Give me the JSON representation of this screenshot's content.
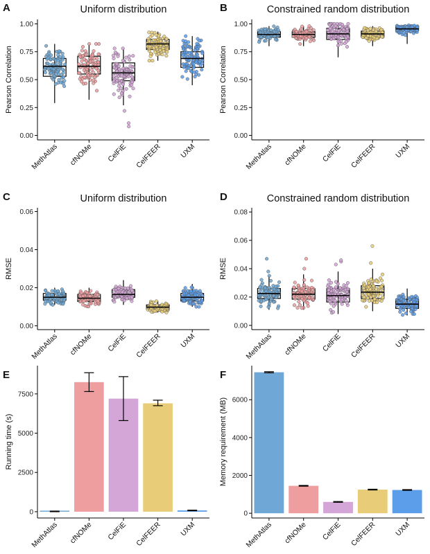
{
  "colors": {
    "MethAtlas": "#6fa8d6",
    "cfNOMe": "#ef9e9f",
    "CelFiE": "#d4a5d7",
    "CelFEER": "#e8cc78",
    "UXM": "#5c9eea"
  },
  "chart_data": [
    {
      "panel": "A",
      "type": "box",
      "title": "Uniform distribution",
      "ylabel": "Pearson Correlation",
      "ylim": [
        -0.04,
        1.04
      ],
      "yticks": [
        "0.00",
        "0.25",
        "0.50",
        "0.75",
        "1.00"
      ],
      "categories": [
        "MethAtlas",
        "cfNOMe",
        "CelFiE",
        "CelFEER",
        "UXM"
      ],
      "boxes": [
        {
          "q1": 0.53,
          "median": 0.62,
          "q3": 0.69,
          "low": 0.29,
          "high": 0.82,
          "spread": 0.09,
          "out": []
        },
        {
          "q1": 0.55,
          "median": 0.62,
          "q3": 0.71,
          "low": 0.32,
          "high": 0.82,
          "spread": 0.09,
          "out": []
        },
        {
          "q1": 0.49,
          "median": 0.56,
          "q3": 0.65,
          "low": 0.27,
          "high": 0.78,
          "spread": 0.09,
          "out": [
            0.08,
            0.11,
            0.22
          ]
        },
        {
          "q1": 0.77,
          "median": 0.82,
          "q3": 0.86,
          "low": 0.67,
          "high": 0.93,
          "spread": 0.05,
          "out": []
        },
        {
          "q1": 0.61,
          "median": 0.69,
          "q3": 0.75,
          "low": 0.45,
          "high": 0.89,
          "spread": 0.09,
          "out": []
        }
      ]
    },
    {
      "panel": "B",
      "type": "box",
      "title": "Constrained random distribution",
      "ylabel": "Pearson Correlation",
      "ylim": [
        -0.04,
        1.04
      ],
      "yticks": [
        "0.00",
        "0.25",
        "0.50",
        "0.75",
        "1.00"
      ],
      "categories": [
        "MethAtlas",
        "cfNOMe",
        "CelFiE",
        "CelFEER",
        "UXM"
      ],
      "boxes": [
        {
          "q1": 0.88,
          "median": 0.905,
          "q3": 0.93,
          "low": 0.8,
          "high": 0.98,
          "spread": 0.03,
          "out": []
        },
        {
          "q1": 0.88,
          "median": 0.905,
          "q3": 0.93,
          "low": 0.8,
          "high": 0.98,
          "spread": 0.03,
          "out": []
        },
        {
          "q1": 0.86,
          "median": 0.91,
          "q3": 0.96,
          "low": 0.7,
          "high": 1.0,
          "spread": 0.05,
          "out": []
        },
        {
          "q1": 0.88,
          "median": 0.91,
          "q3": 0.935,
          "low": 0.8,
          "high": 0.98,
          "spread": 0.03,
          "out": []
        },
        {
          "q1": 0.94,
          "median": 0.955,
          "q3": 0.97,
          "low": 0.82,
          "high": 0.99,
          "spread": 0.02,
          "out": []
        }
      ]
    },
    {
      "panel": "C",
      "type": "box",
      "title": "Uniform distribution",
      "ylabel": "RMSE",
      "ylim": [
        -0.002,
        0.062
      ],
      "yticks": [
        "0.00",
        "0.02",
        "0.04",
        "0.06"
      ],
      "categories": [
        "MethAtlas",
        "cfNOMe",
        "CelFiE",
        "CelFEER",
        "UXM"
      ],
      "boxes": [
        {
          "q1": 0.0135,
          "median": 0.015,
          "q3": 0.017,
          "low": 0.011,
          "high": 0.02,
          "spread": 0.0018,
          "out": []
        },
        {
          "q1": 0.0128,
          "median": 0.0145,
          "q3": 0.0165,
          "low": 0.01,
          "high": 0.02,
          "spread": 0.0018,
          "out": []
        },
        {
          "q1": 0.015,
          "median": 0.0165,
          "q3": 0.019,
          "low": 0.011,
          "high": 0.024,
          "spread": 0.002,
          "out": []
        },
        {
          "q1": 0.0088,
          "median": 0.0098,
          "q3": 0.011,
          "low": 0.007,
          "high": 0.013,
          "spread": 0.0012,
          "out": []
        },
        {
          "q1": 0.013,
          "median": 0.015,
          "q3": 0.017,
          "low": 0.01,
          "high": 0.022,
          "spread": 0.002,
          "out": []
        }
      ]
    },
    {
      "panel": "D",
      "type": "box",
      "title": "Constrained random distribution",
      "ylabel": "RMSE",
      "ylim": [
        -0.003,
        0.083
      ],
      "yticks": [
        "0.00",
        "0.02",
        "0.04",
        "0.06",
        "0.08"
      ],
      "categories": [
        "MethAtlas",
        "cfNOMe",
        "CelFiE",
        "CelFEER",
        "UXM"
      ],
      "boxes": [
        {
          "q1": 0.019,
          "median": 0.0225,
          "q3": 0.026,
          "low": 0.011,
          "high": 0.035,
          "spread": 0.004,
          "out": [
            0.038,
            0.047
          ]
        },
        {
          "q1": 0.0185,
          "median": 0.022,
          "q3": 0.026,
          "low": 0.011,
          "high": 0.036,
          "spread": 0.004,
          "out": [
            0.04,
            0.047
          ]
        },
        {
          "q1": 0.0165,
          "median": 0.021,
          "q3": 0.026,
          "low": 0.008,
          "high": 0.038,
          "spread": 0.005,
          "out": [
            0.043,
            0.045,
            0.046
          ]
        },
        {
          "q1": 0.019,
          "median": 0.0235,
          "q3": 0.028,
          "low": 0.01,
          "high": 0.04,
          "spread": 0.005,
          "out": [
            0.044,
            0.056
          ]
        },
        {
          "q1": 0.012,
          "median": 0.015,
          "q3": 0.0185,
          "low": 0.007,
          "high": 0.026,
          "spread": 0.003,
          "out": []
        }
      ]
    },
    {
      "panel": "E",
      "type": "bar",
      "title": "",
      "ylabel": "Running time (s)",
      "ylim": [
        -400,
        9300
      ],
      "yticks": [
        "0",
        "2500",
        "5000",
        "7500"
      ],
      "ytick_values": [
        0,
        2500,
        5000,
        7500
      ],
      "categories": [
        "MethAtlas",
        "cfNOMe",
        "CelFiE",
        "CelFEER",
        "UXM"
      ],
      "values": [
        20,
        8250,
        7200,
        6900,
        80
      ],
      "errors": [
        [
          0,
          40
        ],
        [
          7650,
          8850
        ],
        [
          5800,
          8600
        ],
        [
          6750,
          7100
        ],
        [
          60,
          100
        ]
      ]
    },
    {
      "panel": "F",
      "type": "bar",
      "title": "",
      "ylabel": "Memory requirement (MB)",
      "ylim": [
        -250,
        7800
      ],
      "yticks": [
        "0",
        "2000",
        "4000",
        "6000"
      ],
      "ytick_values": [
        0,
        2000,
        4000,
        6000
      ],
      "categories": [
        "MethAtlas",
        "cfNOMe",
        "CelFiE",
        "CelFEER",
        "UXM"
      ],
      "values": [
        7450,
        1450,
        600,
        1250,
        1230
      ],
      "errors": [
        [
          7420,
          7480
        ],
        [
          1430,
          1470
        ],
        [
          580,
          620
        ],
        [
          1230,
          1270
        ],
        [
          1210,
          1250
        ]
      ]
    }
  ]
}
